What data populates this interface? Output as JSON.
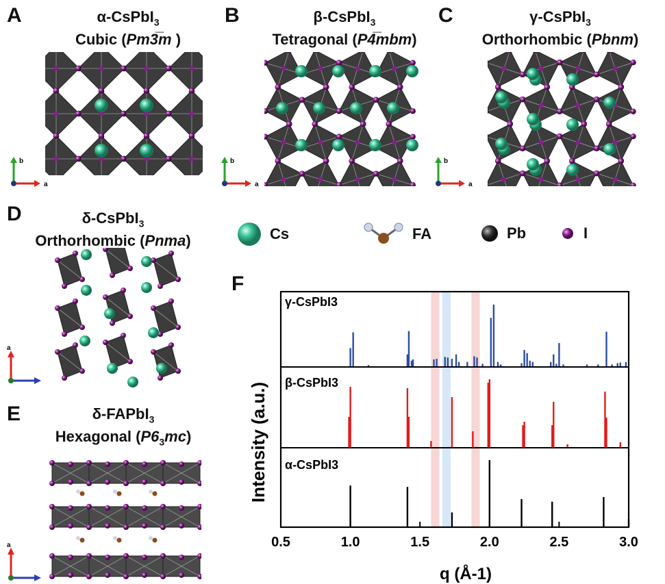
{
  "panels": {
    "A": {
      "letter": "A",
      "phase": "α-CsPbI",
      "sub": "3",
      "system": "Cubic (",
      "group": "Pm3̅m",
      "close": " )"
    },
    "B": {
      "letter": "B",
      "phase": "β-CsPbI",
      "sub": "3",
      "system": "Tetragonal (",
      "group": "P4̅mbm",
      "close": ")"
    },
    "C": {
      "letter": "C",
      "phase": "γ-CsPbI",
      "sub": "3",
      "system": "Orthorhombic (",
      "group": "Pbnm",
      "close": ")"
    },
    "D": {
      "letter": "D",
      "phase": "δ-CsPbI",
      "sub": "3",
      "system": "Orthorhombic (",
      "group": "Pnma",
      "close": ")"
    },
    "E": {
      "letter": "E",
      "phase": "δ-FAPbI",
      "sub": "3",
      "system": "Hexagonal (",
      "group": "P6",
      "group_sub": "3",
      "group2": "mc",
      "close": ")"
    },
    "F": {
      "letter": "F"
    }
  },
  "axis_labels": {
    "a": "a",
    "b": "b"
  },
  "legend": {
    "cs": "Cs",
    "fa": "FA",
    "pb": "Pb",
    "i": "I"
  },
  "colors": {
    "cs": "#3cc59a",
    "pb": "#2e2e2e",
    "iodine": "#8a1d8f",
    "octa": "#3c3c3c",
    "gamma": "#2b4ea5",
    "beta": "#e11b1b",
    "alpha": "#000000",
    "band_red": "#f6cfcf",
    "band_blue": "#cfe4f6"
  },
  "chart_data": {
    "type": "bar",
    "xlabel": "q (Å-1)",
    "ylabel": "Intensity (a.u.)",
    "xlim": [
      0.5,
      3.0
    ],
    "xticks": [
      "0.5",
      "1.0",
      "1.5",
      "2.0",
      "2.5",
      "3.0"
    ],
    "highlight_bands": [
      {
        "from": 1.58,
        "to": 1.64,
        "color": "red"
      },
      {
        "from": 1.66,
        "to": 1.72,
        "color": "blue"
      },
      {
        "from": 1.87,
        "to": 1.93,
        "color": "red"
      }
    ],
    "series": [
      {
        "name": "γ-CsPbI3",
        "peaks": [
          [
            1.0,
            0.3
          ],
          [
            1.02,
            0.55
          ],
          [
            1.13,
            0.03
          ],
          [
            1.41,
            0.2
          ],
          [
            1.42,
            0.57
          ],
          [
            1.44,
            0.1
          ],
          [
            1.45,
            0.12
          ],
          [
            1.6,
            0.12
          ],
          [
            1.62,
            0.13
          ],
          [
            1.68,
            0.16
          ],
          [
            1.7,
            0.15
          ],
          [
            1.73,
            0.13
          ],
          [
            1.76,
            0.2
          ],
          [
            1.78,
            0.08
          ],
          [
            1.84,
            0.08
          ],
          [
            1.89,
            0.17
          ],
          [
            1.91,
            0.15
          ],
          [
            1.95,
            0.05
          ],
          [
            2.01,
            0.78
          ],
          [
            2.03,
            0.99
          ],
          [
            2.06,
            0.08
          ],
          [
            2.08,
            0.04
          ],
          [
            2.23,
            0.06
          ],
          [
            2.25,
            0.27
          ],
          [
            2.27,
            0.22
          ],
          [
            2.29,
            0.1
          ],
          [
            2.31,
            0.08
          ],
          [
            2.44,
            0.08
          ],
          [
            2.46,
            0.2
          ],
          [
            2.48,
            0.05
          ],
          [
            2.5,
            0.38
          ],
          [
            2.53,
            0.04
          ],
          [
            2.7,
            0.04
          ],
          [
            2.78,
            0.04
          ],
          [
            2.84,
            0.56
          ],
          [
            2.88,
            0.04
          ],
          [
            2.92,
            0.06
          ],
          [
            2.94,
            0.07
          ],
          [
            2.98,
            0.08
          ]
        ]
      },
      {
        "name": "β-CsPbI3",
        "peaks": [
          [
            0.99,
            0.45
          ],
          [
            1.0,
            0.89
          ],
          [
            1.41,
            0.87
          ],
          [
            1.42,
            0.45
          ],
          [
            1.58,
            0.1
          ],
          [
            1.73,
            0.74
          ],
          [
            1.88,
            0.24
          ],
          [
            1.99,
            0.95
          ],
          [
            2.0,
            1.0
          ],
          [
            2.24,
            0.33
          ],
          [
            2.25,
            0.38
          ],
          [
            2.45,
            0.33
          ],
          [
            2.46,
            0.67
          ],
          [
            2.56,
            0.05
          ],
          [
            2.83,
            0.82
          ],
          [
            2.84,
            0.44
          ],
          [
            2.94,
            0.08
          ]
        ]
      },
      {
        "name": "α-CsPbI3",
        "peaks": [
          [
            1.0,
            0.62
          ],
          [
            1.41,
            0.6
          ],
          [
            1.73,
            0.22
          ],
          [
            2.0,
            1.0
          ],
          [
            2.23,
            0.42
          ],
          [
            2.45,
            0.38
          ],
          [
            2.82,
            0.45
          ],
          [
            3.0,
            0.12
          ]
        ]
      }
    ]
  }
}
